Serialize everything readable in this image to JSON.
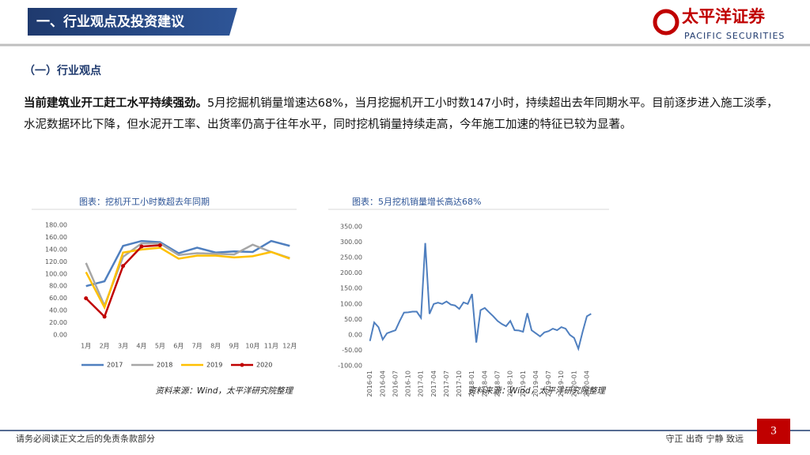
{
  "header": {
    "title": "一、行业观点及投资建议",
    "logo_cn": "太平洋证券",
    "logo_en": "PACIFIC SECURITIES"
  },
  "section": "（一）行业观点",
  "paragraph": {
    "lead": "当前建筑业开工赶工水平持续强劲。",
    "body": "5月挖掘机销量增速达68%，当月挖掘机开工小时数147小时，持续超出去年同期水平。目前逐步进入施工淡季，水泥数据环比下降，但水泥开工率、出货率仍高于往年水平，同时挖机销量持续走高，今年施工加速的特征已较为显著。"
  },
  "chart_data": [
    {
      "type": "line",
      "title": "图表：挖机开工小时数超去年同期",
      "source": "资料来源：Wind，太平洋研究院整理",
      "categories": [
        "1月",
        "2月",
        "3月",
        "4月",
        "5月",
        "6月",
        "7月",
        "8月",
        "9月",
        "10月",
        "11月",
        "12月"
      ],
      "series": [
        {
          "name": "2017",
          "color": "#4f7fbf",
          "values": [
            80,
            88,
            146,
            154,
            152,
            134,
            143,
            135,
            137,
            136,
            154,
            146
          ]
        },
        {
          "name": "2018",
          "color": "#a6a6a6",
          "values": [
            118,
            48,
            128,
            150,
            150,
            131,
            134,
            133,
            132,
            148,
            136,
            126
          ]
        },
        {
          "name": "2019",
          "color": "#ffc000",
          "values": [
            103,
            45,
            135,
            140,
            143,
            125,
            130,
            130,
            127,
            129,
            136,
            125
          ]
        },
        {
          "name": "2020",
          "color": "#c00000",
          "values": [
            60,
            30,
            113,
            145,
            147,
            null,
            null,
            null,
            null,
            null,
            null,
            null
          ],
          "markers": true
        }
      ],
      "ylim": [
        0,
        180
      ],
      "yticks": [
        {
          "value": 0,
          "label": "0.00"
        },
        {
          "value": 20,
          "label": "20.00"
        },
        {
          "value": 40,
          "label": "40.00"
        },
        {
          "value": 60,
          "label": "60.00"
        },
        {
          "value": 80,
          "label": "80.00"
        },
        {
          "value": 100,
          "label": "100.00"
        },
        {
          "value": 120,
          "label": "120.00"
        },
        {
          "value": 140,
          "label": "140.00"
        },
        {
          "value": 160,
          "label": "160.00"
        },
        {
          "value": 180,
          "label": "180.00"
        }
      ],
      "legend": "bottom"
    },
    {
      "type": "line",
      "title": "图表：5月挖机销量增长高达68%",
      "source": "资料来源：Wind，太平洋研究院整理",
      "categories": [
        "2016-01",
        null,
        null,
        "2016-04",
        null,
        null,
        "2016-07",
        null,
        null,
        "2016-10",
        null,
        null,
        "2017-01",
        null,
        null,
        "2017-04",
        null,
        null,
        "2017-07",
        null,
        null,
        "2017-10",
        null,
        null,
        "2018-01",
        null,
        null,
        "2018-04",
        null,
        null,
        "2018-07",
        null,
        null,
        "2018-10",
        null,
        null,
        "2019-01",
        null,
        null,
        "2019-04",
        null,
        null,
        "2019-07",
        null,
        null,
        "2019-10",
        null,
        null,
        "2020-01",
        null,
        null,
        "2020-04",
        null
      ],
      "values": [
        -20,
        40,
        25,
        -15,
        5,
        10,
        15,
        45,
        72,
        73,
        75,
        75,
        55,
        297,
        68,
        100,
        104,
        100,
        108,
        98,
        95,
        84,
        105,
        100,
        132,
        -25,
        80,
        87,
        73,
        60,
        45,
        35,
        28,
        45,
        15,
        14,
        10,
        70,
        15,
        5,
        -5,
        8,
        12,
        20,
        15,
        25,
        20,
        0,
        -10,
        -45,
        10,
        60,
        68
      ],
      "color": "#4f7fbf",
      "ylim": [
        -100,
        350
      ],
      "yticks": [
        {
          "value": -100,
          "label": "-100.00"
        },
        {
          "value": -50,
          "label": "-50.00"
        },
        {
          "value": 0,
          "label": "0.00"
        },
        {
          "value": 50,
          "label": "50.00"
        },
        {
          "value": 100,
          "label": "100.00"
        },
        {
          "value": 150,
          "label": "150.00"
        },
        {
          "value": 200,
          "label": "200.00"
        },
        {
          "value": 250,
          "label": "250.00"
        },
        {
          "value": 300,
          "label": "300.00"
        },
        {
          "value": 350,
          "label": "350.00"
        }
      ]
    }
  ],
  "footer": {
    "disclaimer": "请务必阅读正文之后的免责条款部分",
    "motto": "守正 出奇 宁静 致远",
    "page": "3"
  }
}
